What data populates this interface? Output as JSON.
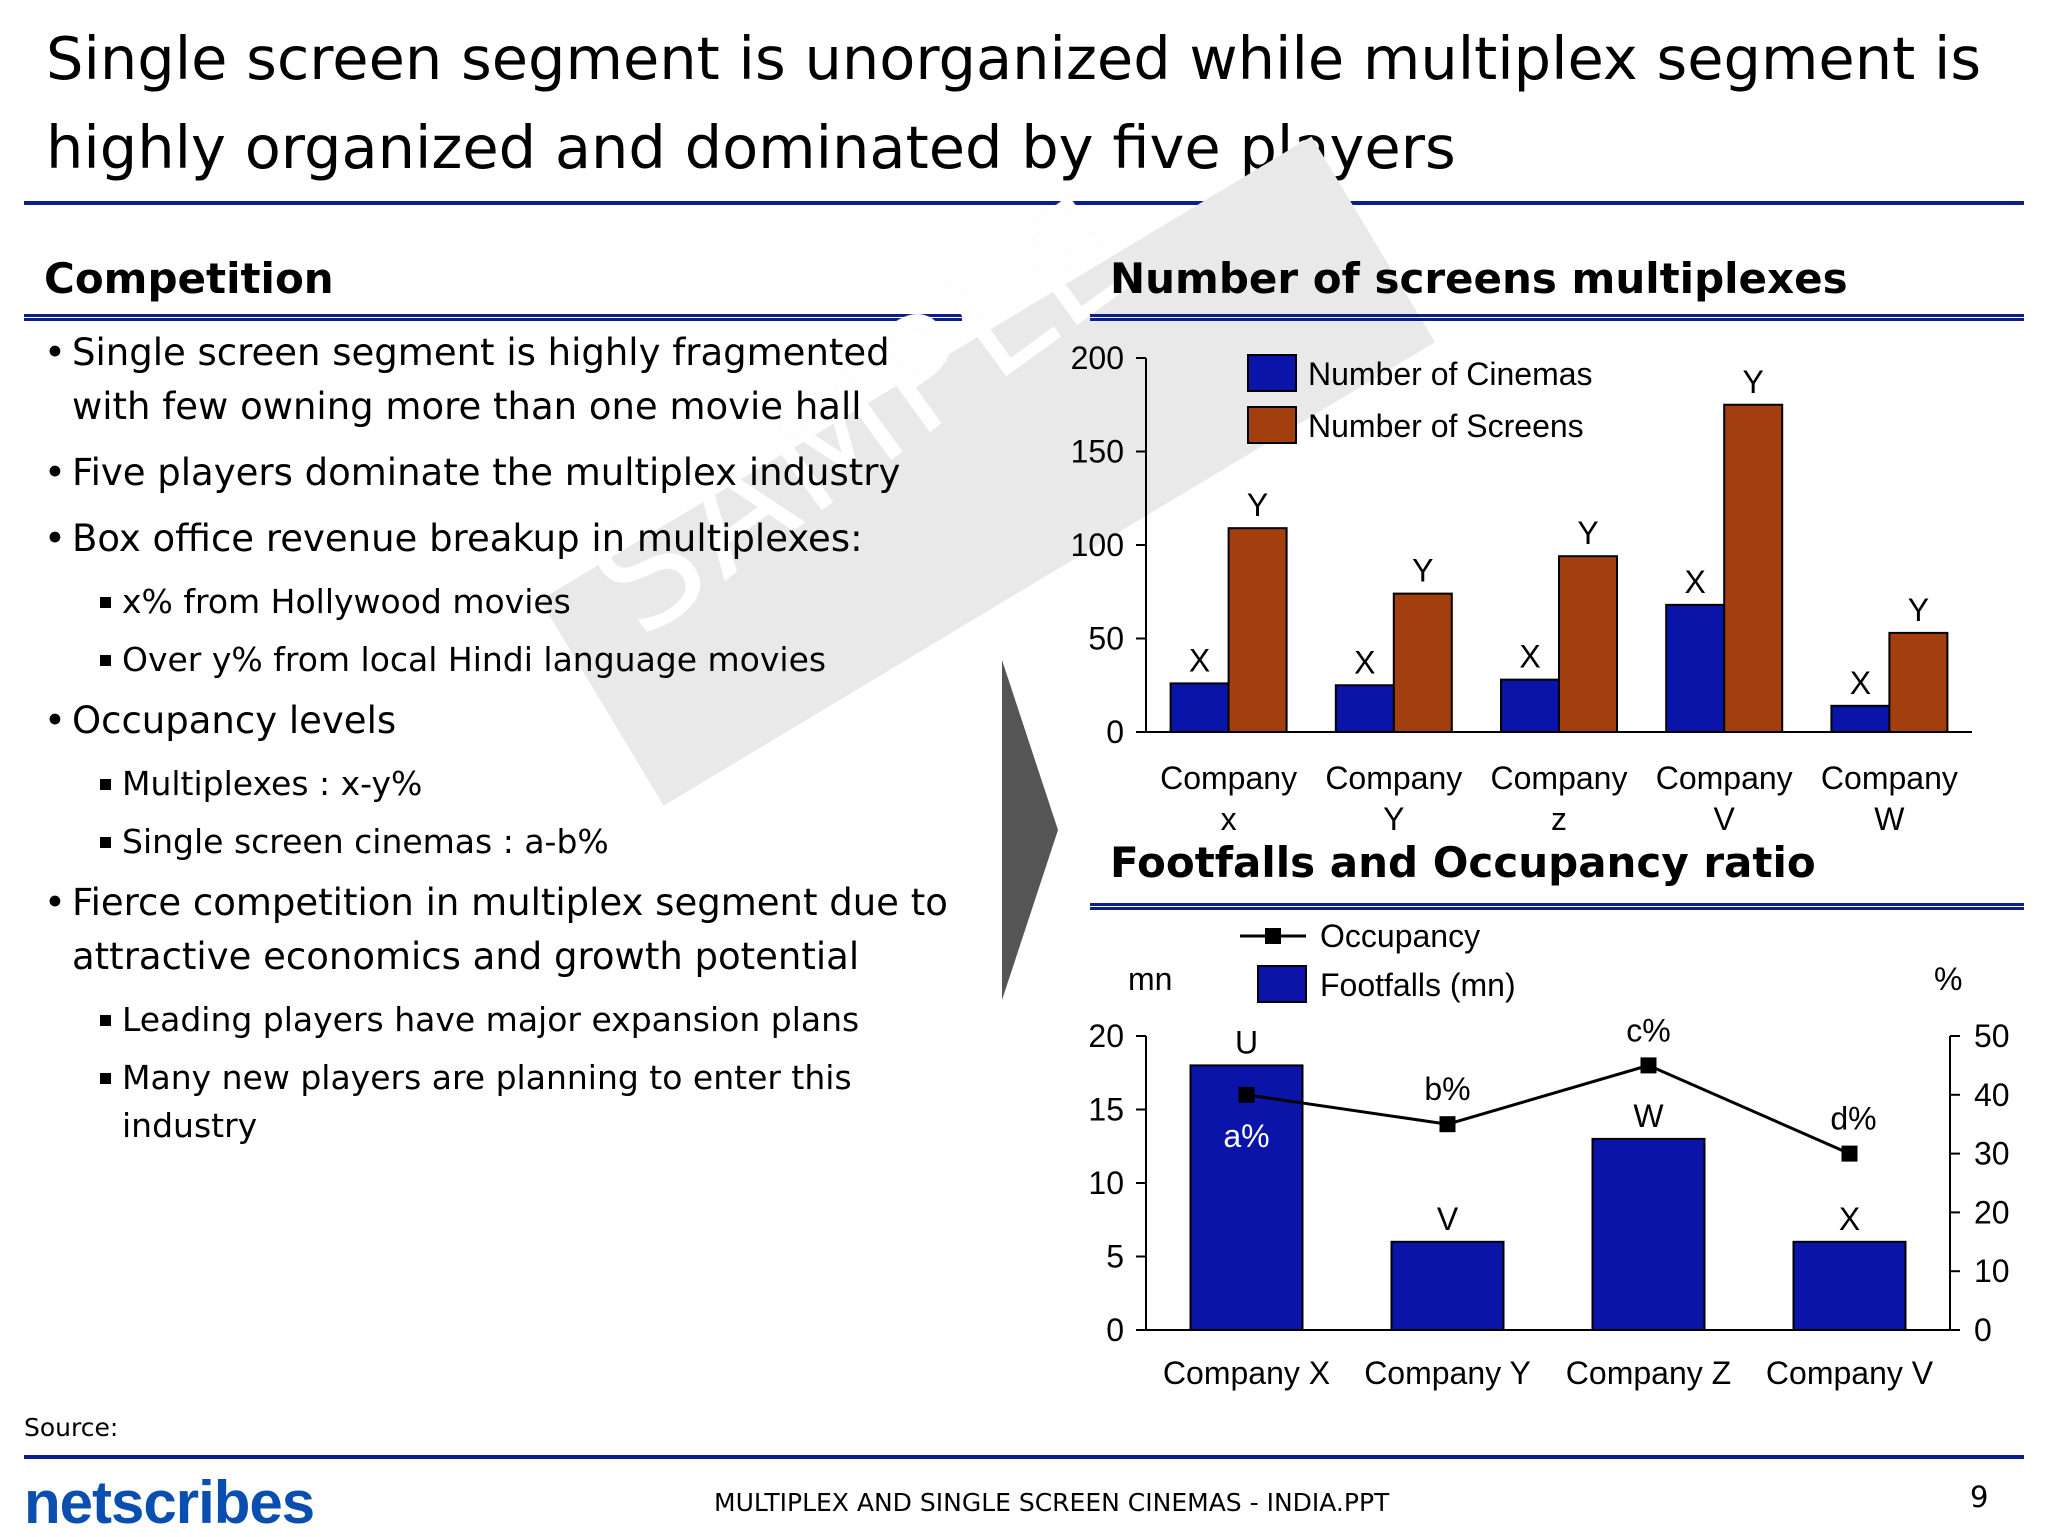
{
  "title": "Single screen segment is unorganized while multiplex segment is highly organized and dominated by five players",
  "competition": {
    "heading": "Competition",
    "bullets": [
      {
        "text": "Single screen segment is highly fragmented with few owning more than one movie hall",
        "sub": []
      },
      {
        "text": "Five players dominate the multiplex industry",
        "sub": []
      },
      {
        "text": "Box office revenue breakup in multiplexes:",
        "sub": [
          "x% from Hollywood movies",
          "Over y% from local Hindi language movies"
        ]
      },
      {
        "text": "Occupancy levels",
        "sub": [
          "Multiplexes : x-y%",
          "Single screen cinemas : a-b%"
        ]
      },
      {
        "text": "Fierce competition in multiplex segment due to attractive economics and growth potential",
        "sub": [
          "Leading players have major expansion plans",
          "Many new players are planning to enter this industry"
        ]
      }
    ]
  },
  "watermark": "SAMPLE",
  "chart_data": [
    {
      "type": "bar",
      "title": "Number of screens multiplexes",
      "categories": [
        "Company x",
        "Company Y",
        "Company z",
        "Company V",
        "Company W"
      ],
      "series": [
        {
          "name": "Number of Cinemas",
          "values": [
            26,
            25,
            28,
            68,
            14
          ],
          "labels": [
            "X",
            "X",
            "X",
            "X",
            "X"
          ],
          "color": "#0b14a8"
        },
        {
          "name": "Number of Screens",
          "values": [
            109,
            74,
            94,
            175,
            53
          ],
          "labels": [
            "Y",
            "Y",
            "Y",
            "Y",
            "Y"
          ],
          "color": "#a33f0f"
        }
      ],
      "ylim": [
        0,
        200
      ],
      "yticks": [
        0,
        50,
        100,
        150,
        200
      ],
      "legend": "top-left",
      "grid": false
    },
    {
      "type": "bar+line",
      "title": "Footfalls and Occupancy ratio",
      "categories": [
        "Company X",
        "Company Y",
        "Company Z",
        "Company V"
      ],
      "series": [
        {
          "name": "Footfalls (mn)",
          "type": "bar",
          "axis": "left",
          "values": [
            18,
            6,
            13,
            6
          ],
          "labels": [
            "U",
            "V",
            "W",
            "X"
          ],
          "color": "#0b14a8"
        },
        {
          "name": "Occupancy",
          "type": "line",
          "axis": "right",
          "values": [
            40,
            35,
            45,
            30
          ],
          "labels": [
            "a%",
            "b%",
            "c%",
            "d%"
          ],
          "color": "#000000"
        }
      ],
      "ylabel_left": "mn",
      "ylabel_right": "%",
      "ylim_left": [
        0,
        20
      ],
      "yticks_left": [
        0,
        5,
        10,
        15,
        20
      ],
      "ylim_right": [
        0,
        50
      ],
      "yticks_right": [
        0,
        10,
        20,
        30,
        40,
        50
      ],
      "legend": "top-left",
      "grid": false
    }
  ],
  "footer": {
    "source_label": "Source:",
    "logo": "netscribes",
    "file_name": "MULTIPLEX AND SINGLE SCREEN CINEMAS - INDIA.PPT",
    "page_number": "9"
  }
}
